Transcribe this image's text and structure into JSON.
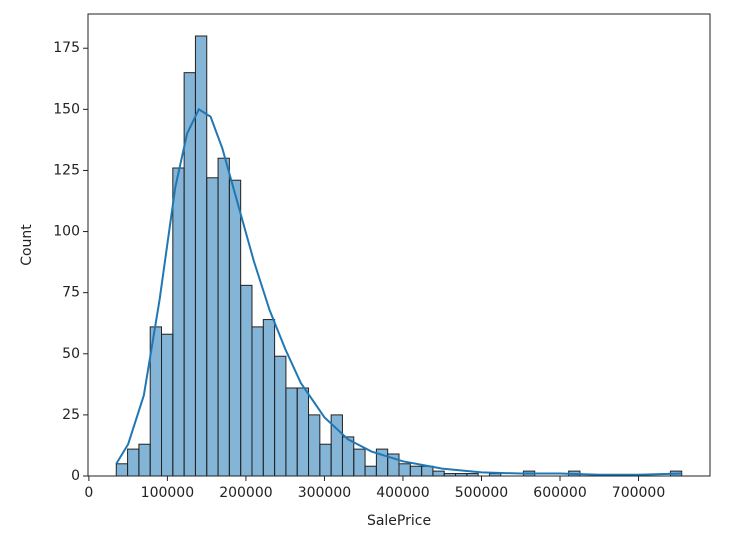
{
  "chart_data": {
    "type": "histogram",
    "xlabel": "SalePrice",
    "ylabel": "Count",
    "bins": [
      34900,
      49302,
      63704,
      78106,
      92508,
      106910,
      121312,
      135714,
      150116,
      164518,
      178920,
      193322,
      207724,
      222126,
      236528,
      250930,
      265332,
      279734,
      294136,
      308538,
      322940,
      337342,
      351744,
      366146,
      380548,
      394950,
      409352,
      423754,
      438156,
      452558,
      466960,
      481362,
      495764,
      510166,
      524568,
      538970,
      553372,
      567774,
      582176,
      596578,
      610980,
      625382,
      639784,
      654186,
      668588,
      682990,
      697392,
      711794,
      726196,
      740598,
      755000
    ],
    "values": [
      5,
      11,
      13,
      61,
      58,
      126,
      165,
      180,
      122,
      130,
      121,
      78,
      61,
      64,
      49,
      36,
      36,
      25,
      13,
      25,
      16,
      11,
      4,
      11,
      9,
      5,
      4,
      4,
      2,
      1,
      1,
      1,
      0,
      1,
      0,
      0,
      2,
      0,
      0,
      0,
      2,
      0,
      0,
      0,
      0,
      0,
      0,
      0,
      0,
      2
    ],
    "kde": {
      "x": [
        34900,
        50000,
        70000,
        90000,
        110000,
        125000,
        140000,
        155000,
        170000,
        190000,
        210000,
        230000,
        250000,
        270000,
        300000,
        330000,
        360000,
        400000,
        450000,
        500000,
        550000,
        600000,
        650000,
        700000,
        755000
      ],
      "y": [
        5,
        13,
        33,
        72,
        118,
        140,
        150,
        147,
        134,
        111,
        88,
        68,
        52,
        38,
        24,
        15,
        10,
        6,
        3,
        1.5,
        1,
        1,
        0.5,
        0.5,
        1
      ]
    },
    "color": "#1f77b4",
    "xlim": [
      -1105,
      791005
    ],
    "ylim": [
      0,
      189
    ],
    "xticks": [
      0,
      100000,
      200000,
      300000,
      400000,
      500000,
      600000,
      700000
    ],
    "yticks": [
      0,
      25,
      50,
      75,
      100,
      125,
      150,
      175
    ]
  }
}
